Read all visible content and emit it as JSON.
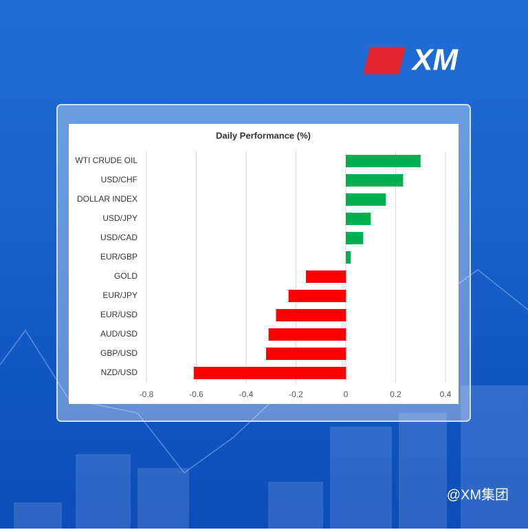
{
  "brand": {
    "logo": "XM",
    "watermark": "@XM集团"
  },
  "chart_data": {
    "type": "hbar",
    "title": "Daily Performance (%)",
    "categories": [
      "WTI CRUDE OIL",
      "USD/CHF",
      "DOLLAR INDEX",
      "USD/JPY",
      "USD/CAD",
      "EUR/GBP",
      "GOLD",
      "EUR/JPY",
      "EUR/USD",
      "AUD/USD",
      "GBP/USD",
      "NZD/USD"
    ],
    "values": [
      0.3,
      0.23,
      0.16,
      0.1,
      0.07,
      0.02,
      -0.16,
      -0.23,
      -0.28,
      -0.31,
      -0.32,
      -0.61
    ],
    "positive_color": "#00b050",
    "negative_color": "#ff0000",
    "xlim": [
      -0.8,
      0.4
    ],
    "xticks": [
      -0.8,
      -0.6,
      -0.4,
      -0.2,
      0,
      0.2,
      0.4
    ],
    "grid": true
  }
}
